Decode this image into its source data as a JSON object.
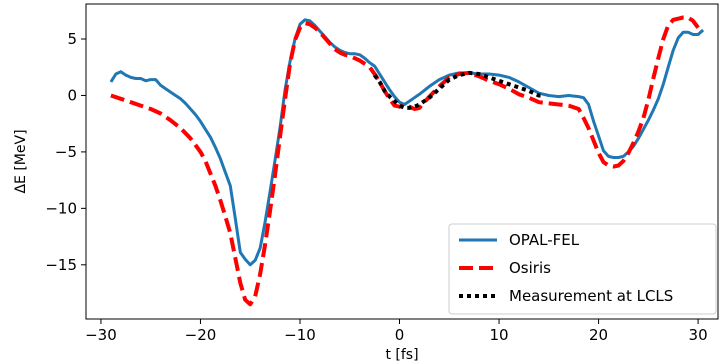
{
  "chart_data": {
    "type": "line",
    "title": "",
    "xlabel": "t [fs]",
    "ylabel": "ΔE [MeV]",
    "xlim": [
      -31.5,
      32
    ],
    "ylim": [
      -19.8,
      8.1
    ],
    "xticks": [
      -30,
      -20,
      -10,
      0,
      10,
      20,
      30
    ],
    "yticks": [
      5,
      0,
      -5,
      -10,
      -15
    ],
    "xtick_labels": [
      "−30",
      "−20",
      "−10",
      "0",
      "10",
      "20",
      "30"
    ],
    "ytick_labels": [
      "5",
      "0",
      "−5",
      "−10",
      "−15"
    ],
    "grid": false,
    "legend_position": "lower-right",
    "series": [
      {
        "name": "OPAL-FEL",
        "color": "#1f77b4",
        "style": "solid",
        "x": [
          -29,
          -28.5,
          -28,
          -27.5,
          -27,
          -26.5,
          -26,
          -25.5,
          -25,
          -24.5,
          -24,
          -23.5,
          -23,
          -22.5,
          -22,
          -21.5,
          -21,
          -20.5,
          -20,
          -19.5,
          -19,
          -18.5,
          -18,
          -17.5,
          -17,
          -16.5,
          -16,
          -15.5,
          -15,
          -14.5,
          -14,
          -13.5,
          -13,
          -12.5,
          -12,
          -11.5,
          -11,
          -10.5,
          -10,
          -9.5,
          -9,
          -8.5,
          -8,
          -7.5,
          -7,
          -6.5,
          -6,
          -5.5,
          -5,
          -4.5,
          -4,
          -3.5,
          -3,
          -2.5,
          -2,
          -1.5,
          -1,
          -0.5,
          0,
          0.5,
          1,
          1.5,
          2,
          3,
          4,
          5,
          6,
          7,
          8,
          9,
          10,
          11,
          12,
          13,
          14,
          15,
          16,
          17,
          18,
          18.5,
          19,
          19.5,
          20,
          20.5,
          21,
          21.5,
          22,
          22.5,
          23,
          23.5,
          24,
          24.5,
          25,
          25.5,
          26,
          26.5,
          27,
          27.5,
          28,
          28.5,
          29,
          29.5,
          30,
          30.5
        ],
        "y": [
          1.2,
          1.9,
          2.1,
          1.8,
          1.6,
          1.5,
          1.5,
          1.3,
          1.4,
          1.4,
          0.9,
          0.6,
          0.3,
          0.0,
          -0.3,
          -0.7,
          -1.2,
          -1.7,
          -2.3,
          -3.0,
          -3.7,
          -4.6,
          -5.6,
          -6.8,
          -8.0,
          -10.9,
          -13.9,
          -14.5,
          -15.0,
          -14.6,
          -13.5,
          -11.2,
          -8.5,
          -5.7,
          -2.8,
          0.5,
          3.0,
          5.0,
          6.3,
          6.7,
          6.6,
          6.2,
          5.7,
          5.2,
          4.7,
          4.3,
          4.0,
          3.8,
          3.7,
          3.7,
          3.6,
          3.3,
          2.9,
          2.6,
          1.9,
          1.2,
          0.5,
          -0.1,
          -0.6,
          -0.8,
          -0.5,
          -0.2,
          0.1,
          0.8,
          1.4,
          1.8,
          2.0,
          2.0,
          1.9,
          1.9,
          1.8,
          1.6,
          1.2,
          0.7,
          0.2,
          0.0,
          -0.1,
          0.0,
          -0.1,
          -0.2,
          -0.8,
          -2.3,
          -3.6,
          -4.9,
          -5.4,
          -5.5,
          -5.5,
          -5.4,
          -5.0,
          -4.5,
          -3.8,
          -3.0,
          -2.2,
          -1.3,
          -0.3,
          1.0,
          2.5,
          4.0,
          5.1,
          5.6,
          5.6,
          5.4,
          5.4,
          5.8
        ]
      },
      {
        "name": "Osiris",
        "color": "#ff0000",
        "style": "dashed",
        "x": [
          -29,
          -28,
          -27,
          -26,
          -25,
          -24,
          -23,
          -22,
          -21,
          -20,
          -19.5,
          -19,
          -18.5,
          -18,
          -17.5,
          -17,
          -16.5,
          -16,
          -15.5,
          -15,
          -14.5,
          -14,
          -13.5,
          -13,
          -12.5,
          -12,
          -11.5,
          -11,
          -10.5,
          -10,
          -9.5,
          -9,
          -8.5,
          -8,
          -7.5,
          -7,
          -6.5,
          -6,
          -5.5,
          -5,
          -4.5,
          -4,
          -3.5,
          -3,
          -2.5,
          -2,
          -1.5,
          -1,
          -0.5,
          0,
          0.5,
          1,
          1.5,
          2,
          3,
          4,
          5,
          6,
          7,
          8,
          9,
          10,
          11,
          12,
          13,
          14,
          15,
          16,
          17,
          18,
          18.5,
          19,
          19.5,
          20,
          20.5,
          21,
          21.5,
          22,
          22.5,
          23,
          23.5,
          24,
          24.5,
          25,
          25.5,
          26,
          26.5,
          27,
          27.5,
          28,
          28.5,
          29,
          29.5,
          30
        ],
        "y": [
          0.0,
          -0.3,
          -0.6,
          -0.9,
          -1.2,
          -1.6,
          -2.2,
          -2.9,
          -3.8,
          -5.0,
          -5.8,
          -6.9,
          -8.0,
          -9.3,
          -10.7,
          -12.2,
          -14.4,
          -16.6,
          -18.1,
          -18.5,
          -17.8,
          -15.8,
          -13.2,
          -10.2,
          -7.0,
          -3.6,
          -0.3,
          2.8,
          4.9,
          6.0,
          6.4,
          6.3,
          6.0,
          5.6,
          5.1,
          4.6,
          4.1,
          3.8,
          3.6,
          3.5,
          3.3,
          3.1,
          2.8,
          2.5,
          1.9,
          1.2,
          0.4,
          -0.3,
          -0.9,
          -1.0,
          -0.9,
          -1.0,
          -1.2,
          -1.1,
          -0.1,
          0.8,
          1.6,
          1.9,
          2.0,
          1.7,
          1.3,
          1.0,
          0.6,
          0.1,
          -0.2,
          -0.6,
          -0.7,
          -0.8,
          -0.9,
          -1.2,
          -2.0,
          -2.9,
          -4.0,
          -5.1,
          -5.9,
          -6.2,
          -6.3,
          -6.2,
          -5.8,
          -5.1,
          -4.2,
          -3.2,
          -2.0,
          -0.4,
          1.5,
          3.3,
          5.0,
          6.2,
          6.7,
          6.8,
          6.9,
          6.9,
          6.6,
          6.0
        ]
      },
      {
        "name": "Measurement at LCLS",
        "color": "#000000",
        "style": "dotted",
        "x": [
          -2.5,
          -2,
          -1.5,
          -1,
          -0.5,
          0,
          0.5,
          1,
          1.5,
          2,
          3,
          4,
          5,
          6,
          7,
          8,
          9,
          10,
          11,
          12,
          13,
          14,
          14.5
        ],
        "y": [
          1.8,
          1.2,
          0.4,
          -0.1,
          -0.5,
          -0.9,
          -1.1,
          -1.1,
          -1.0,
          -0.8,
          -0.2,
          0.6,
          1.4,
          1.8,
          2.0,
          1.9,
          1.6,
          1.3,
          1.0,
          0.7,
          0.4,
          0.0,
          0.0
        ]
      }
    ]
  }
}
